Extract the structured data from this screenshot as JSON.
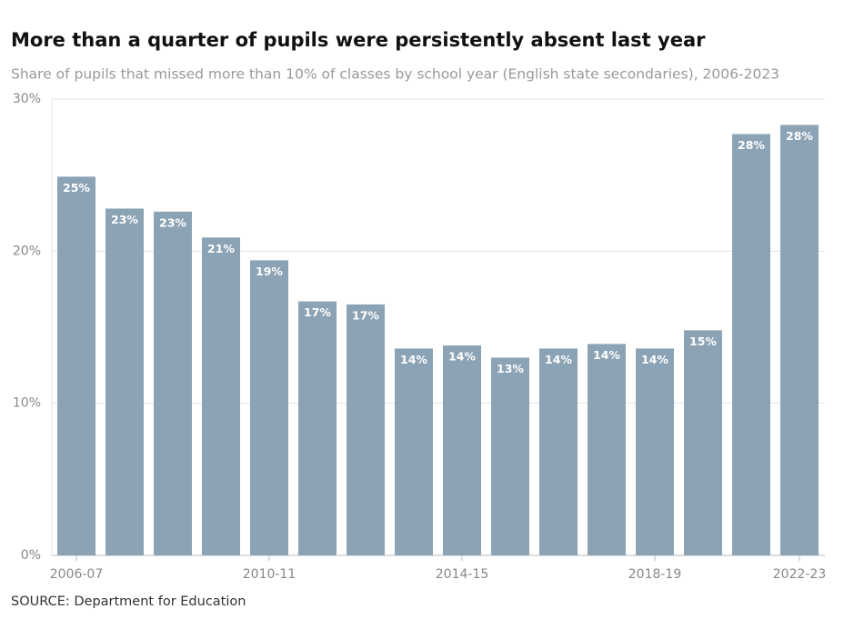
{
  "chart_data": {
    "type": "bar",
    "title": "More than a quarter of pupils were persistently absent last year",
    "subtitle": "Share of pupils that missed more than 10% of classes by school year (English state secondaries), 2006-2023",
    "source": "SOURCE: Department for Education",
    "categories": [
      "2006-07",
      null,
      null,
      null,
      "2010-11",
      null,
      null,
      null,
      "2014-15",
      null,
      null,
      null,
      "2018-19",
      null,
      null,
      "2022-23"
    ],
    "values": [
      24.9,
      22.8,
      22.6,
      20.9,
      19.4,
      16.7,
      16.5,
      13.6,
      13.8,
      13.0,
      13.6,
      13.9,
      13.6,
      14.8,
      27.7,
      28.3
    ],
    "value_labels": [
      "25%",
      "23%",
      "23%",
      "21%",
      "19%",
      "17%",
      "17%",
      "14%",
      "14%",
      "13%",
      "14%",
      "14%",
      "14%",
      "15%",
      "28%",
      "28%"
    ],
    "color": "#8ba3b5",
    "ylim": [
      0,
      30
    ],
    "yticks": [
      {
        "value": 0,
        "label": "0%"
      },
      {
        "value": 10,
        "label": "10%"
      },
      {
        "value": 20,
        "label": "20%"
      },
      {
        "value": 30,
        "label": "30%"
      }
    ],
    "grid": true
  }
}
